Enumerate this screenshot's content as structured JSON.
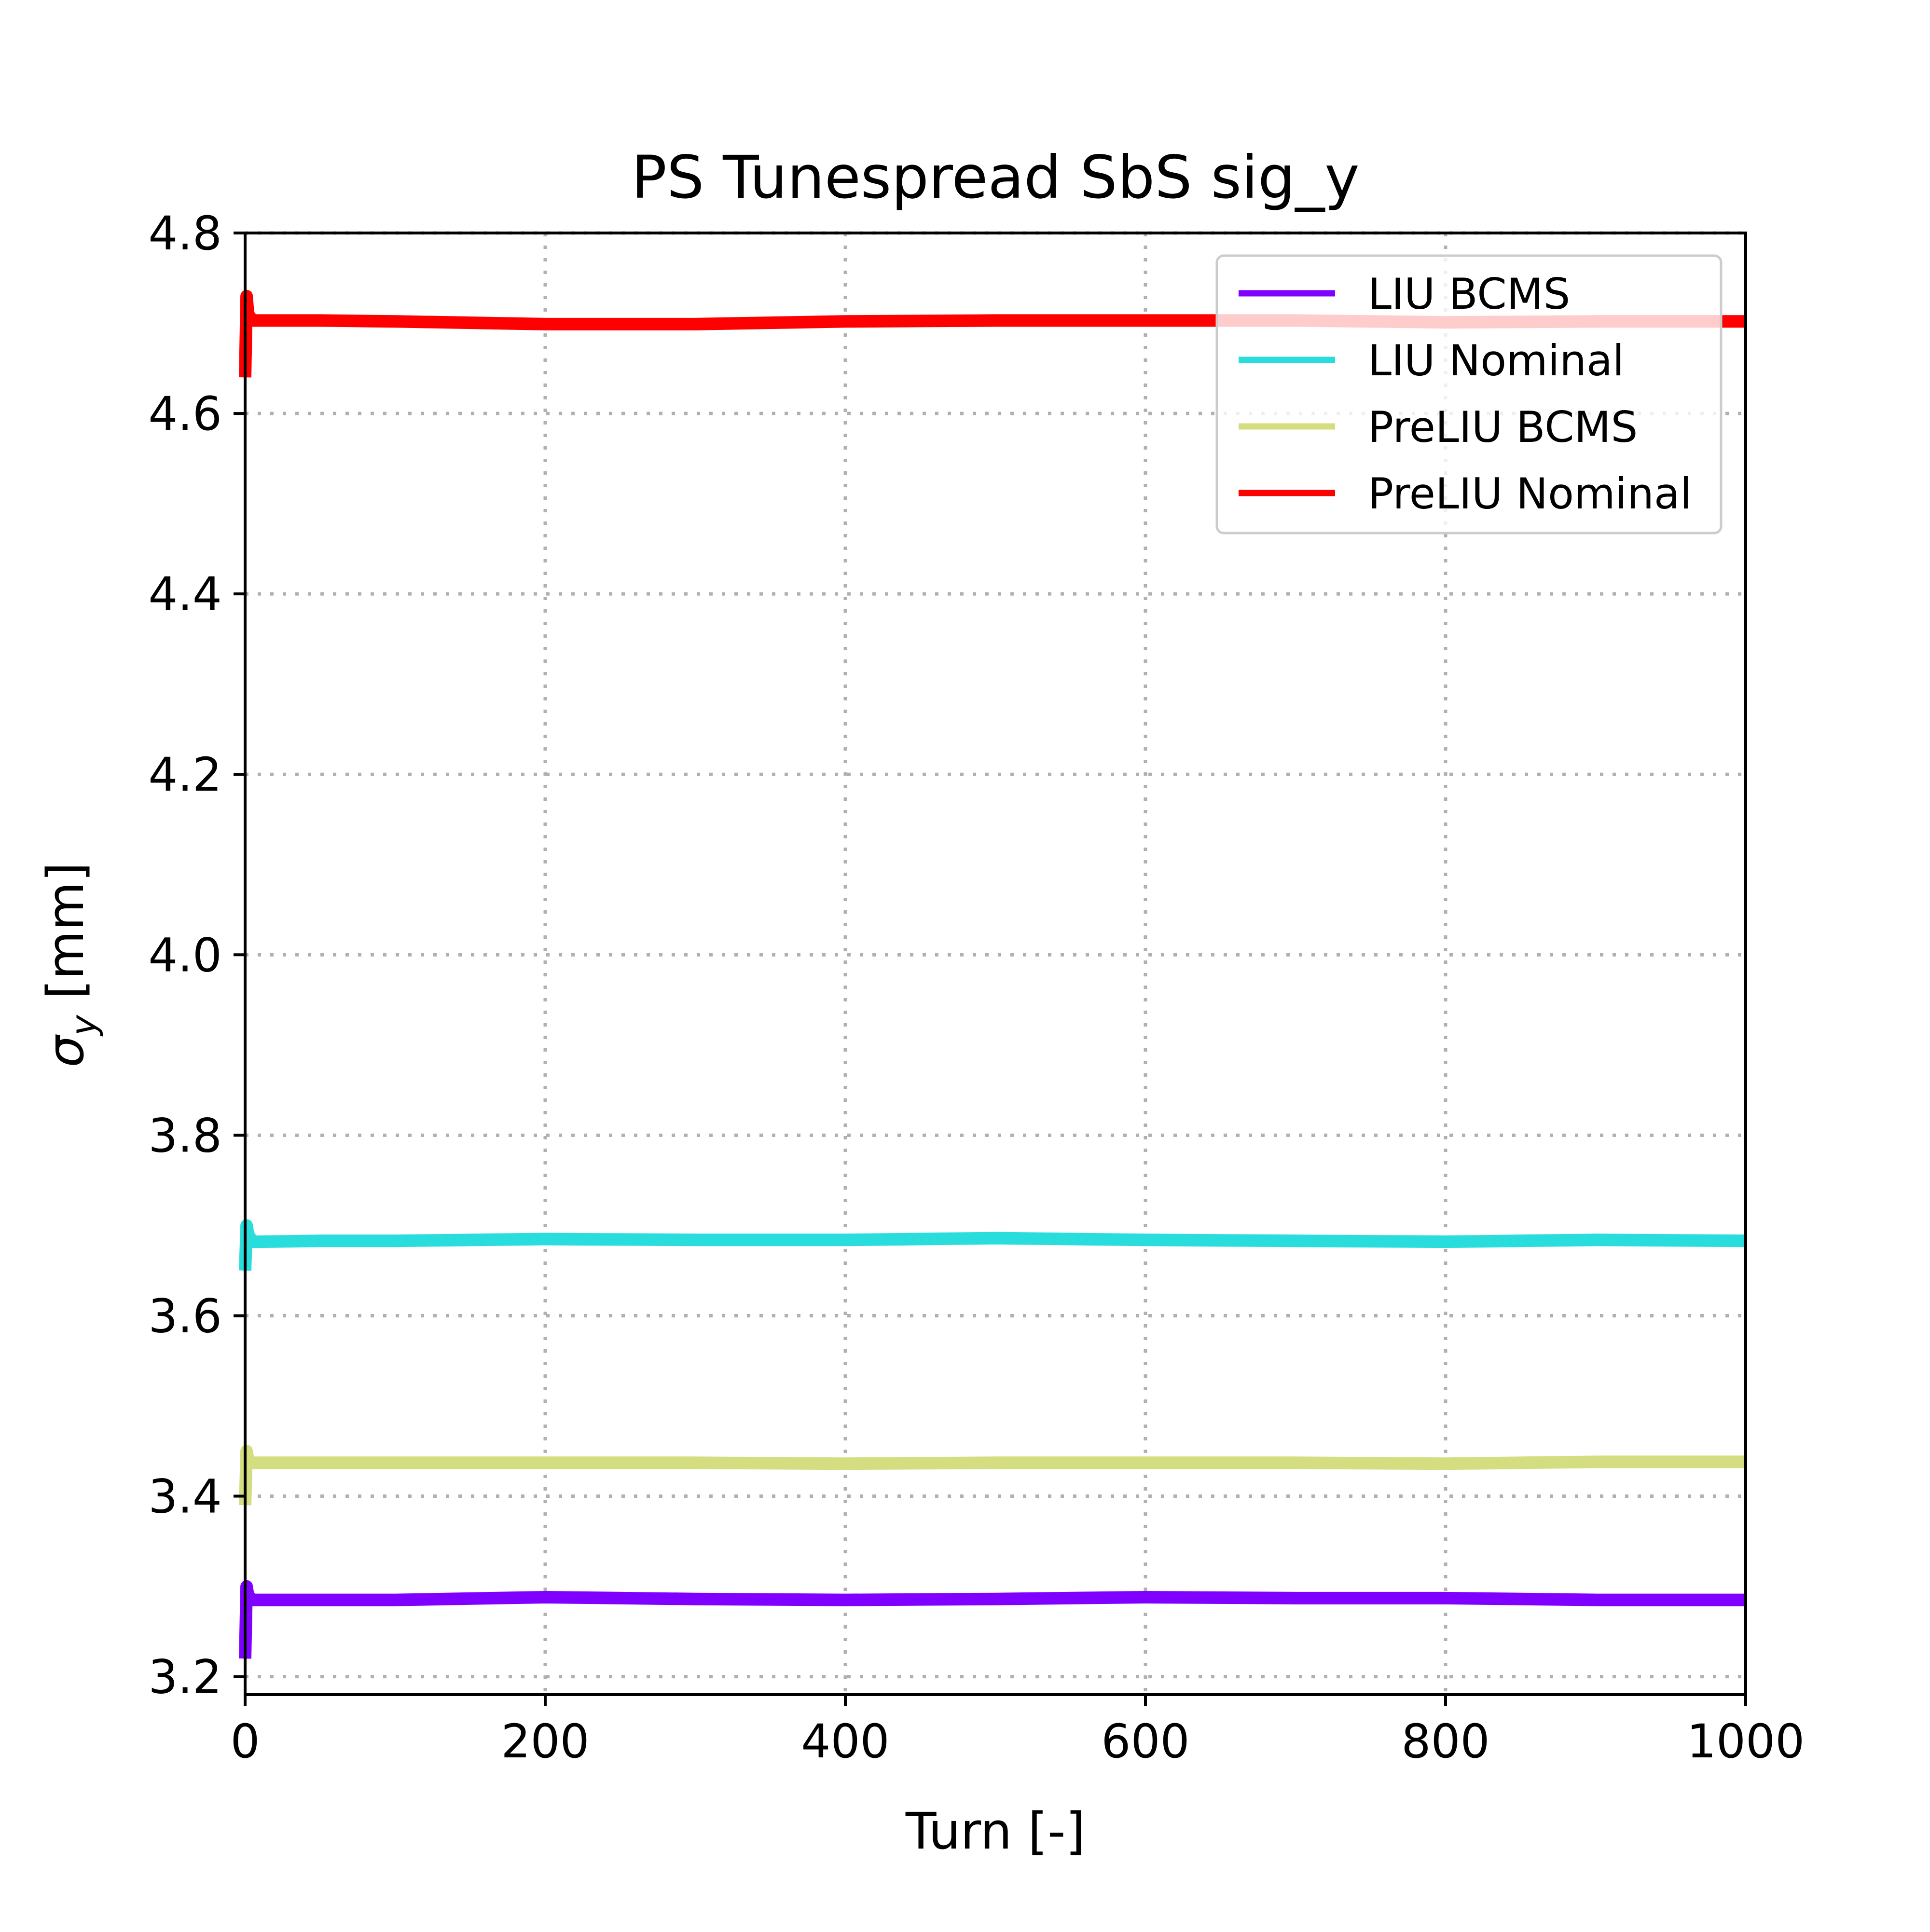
{
  "chart_data": {
    "type": "line",
    "title": "PS Tunespread SbS sig_y",
    "xlabel": "Turn [-]",
    "ylabel_symbol": "σ",
    "ylabel_subscript": "y",
    "ylabel_unit": " [mm]",
    "xlim": [
      0,
      1000
    ],
    "ylim": [
      3.18,
      4.8
    ],
    "xticks": [
      0,
      200,
      400,
      600,
      800,
      1000
    ],
    "xtick_labels": [
      "0",
      "200",
      "400",
      "600",
      "800",
      "1000"
    ],
    "yticks": [
      3.2,
      3.4,
      3.6,
      3.8,
      4.0,
      4.2,
      4.4,
      4.6,
      4.8
    ],
    "ytick_labels": [
      "3.2",
      "3.4",
      "3.6",
      "3.8",
      "4.0",
      "4.2",
      "4.4",
      "4.6",
      "4.8"
    ],
    "grid": true,
    "legend_position": "top-right",
    "series": [
      {
        "name": "LIU BCMS",
        "color": "#8000ff",
        "x": [
          0,
          1,
          2,
          5,
          10,
          50,
          100,
          200,
          300,
          400,
          500,
          600,
          700,
          800,
          900,
          1000
        ],
        "values": [
          3.22,
          3.3,
          3.29,
          3.285,
          3.285,
          3.285,
          3.285,
          3.288,
          3.286,
          3.285,
          3.286,
          3.288,
          3.287,
          3.287,
          3.285,
          3.285
        ]
      },
      {
        "name": "LIU Nominal",
        "color": "#2adddd",
        "x": [
          0,
          1,
          2,
          5,
          10,
          50,
          100,
          200,
          300,
          400,
          500,
          600,
          700,
          800,
          900,
          1000
        ],
        "values": [
          3.65,
          3.7,
          3.69,
          3.682,
          3.682,
          3.683,
          3.683,
          3.685,
          3.684,
          3.684,
          3.686,
          3.684,
          3.683,
          3.682,
          3.684,
          3.683
        ]
      },
      {
        "name": "PreLIU BCMS",
        "color": "#d4dd80",
        "x": [
          0,
          1,
          2,
          5,
          10,
          50,
          100,
          200,
          300,
          400,
          500,
          600,
          700,
          800,
          900,
          1000
        ],
        "values": [
          3.39,
          3.45,
          3.44,
          3.437,
          3.437,
          3.437,
          3.437,
          3.437,
          3.437,
          3.436,
          3.437,
          3.437,
          3.437,
          3.436,
          3.438,
          3.438
        ]
      },
      {
        "name": "PreLIU Nominal",
        "color": "#ff0000",
        "x": [
          0,
          1,
          2,
          5,
          10,
          50,
          100,
          200,
          300,
          400,
          500,
          600,
          700,
          800,
          900,
          1000
        ],
        "values": [
          4.64,
          4.73,
          4.71,
          4.703,
          4.703,
          4.703,
          4.702,
          4.699,
          4.699,
          4.702,
          4.703,
          4.703,
          4.703,
          4.701,
          4.702,
          4.702
        ]
      }
    ]
  }
}
